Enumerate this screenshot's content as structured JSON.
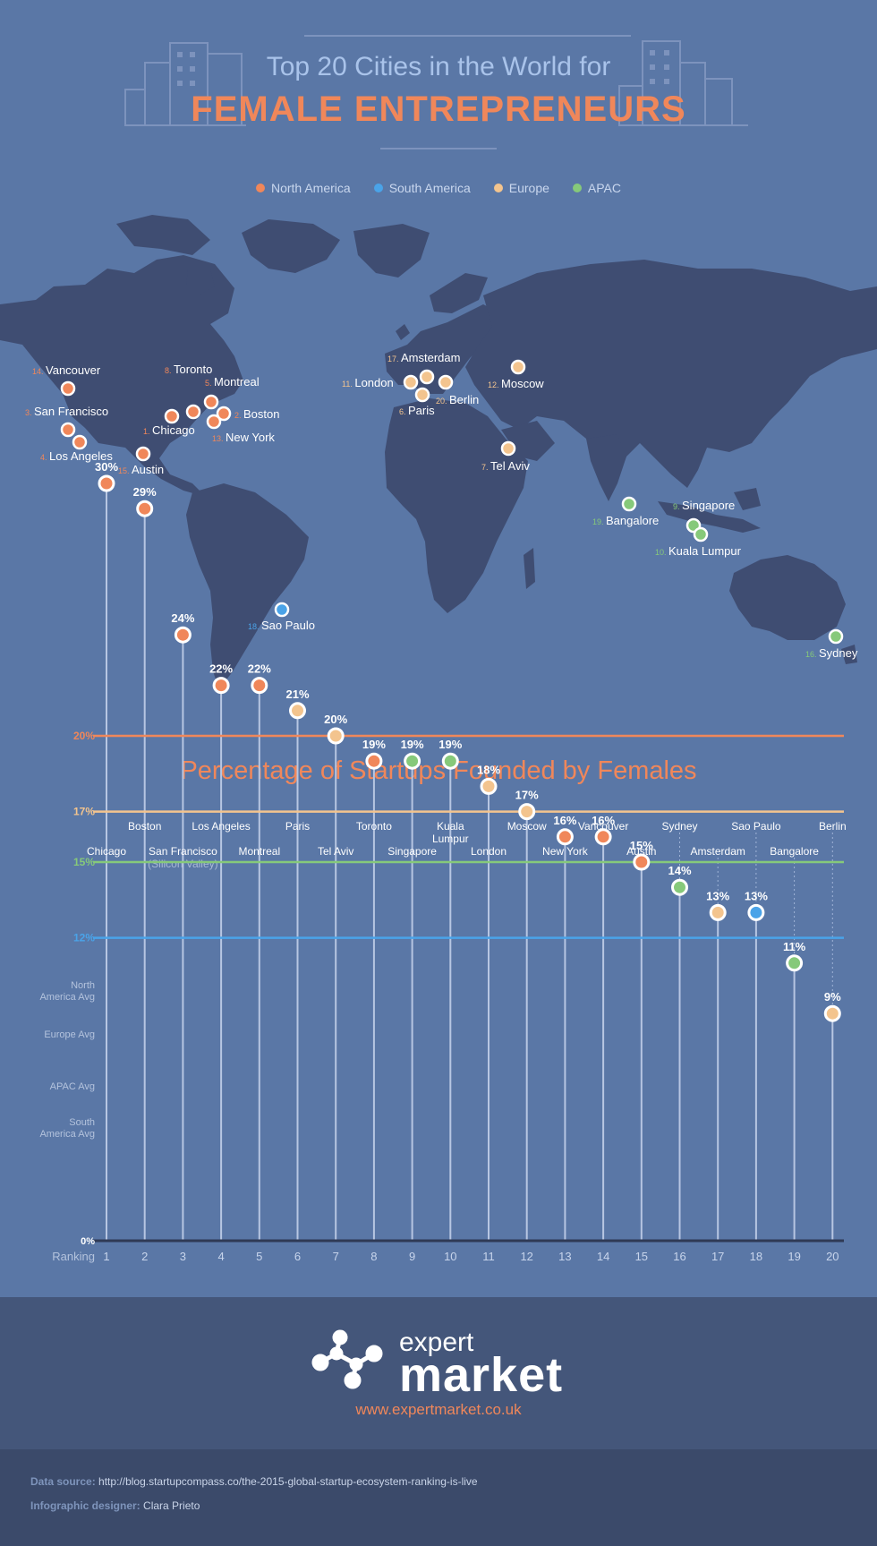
{
  "header": {
    "title_line1": "Top 20 Cities in the World for",
    "title_line2": "FEMALE ENTREPRENEURS"
  },
  "colors": {
    "north_america": "#f0875a",
    "south_america": "#4aa3e8",
    "europe": "#f3c48e",
    "apac": "#86c97a",
    "land": "#3f4d72",
    "background": "#5a77a6"
  },
  "legend": [
    {
      "label": "North America",
      "color": "#f0875a"
    },
    {
      "label": "South America",
      "color": "#4aa3e8"
    },
    {
      "label": "Europe",
      "color": "#f3c48e"
    },
    {
      "label": "APAC",
      "color": "#86c97a"
    }
  ],
  "map": {
    "cities": [
      {
        "rank": "14.",
        "name": "Vancouver",
        "region": "north_america"
      },
      {
        "rank": "3.",
        "name": "San Francisco",
        "region": "north_america"
      },
      {
        "rank": "4.",
        "name": "Los Angeles",
        "region": "north_america"
      },
      {
        "rank": "15.",
        "name": "Austin",
        "region": "north_america"
      },
      {
        "rank": "1.",
        "name": "Chicago",
        "region": "north_america"
      },
      {
        "rank": "8.",
        "name": "Toronto",
        "region": "north_america"
      },
      {
        "rank": "5.",
        "name": "Montreal",
        "region": "north_america"
      },
      {
        "rank": "2.",
        "name": "Boston",
        "region": "north_america"
      },
      {
        "rank": "13.",
        "name": "New York",
        "region": "north_america"
      },
      {
        "rank": "18.",
        "name": "Sao Paulo",
        "region": "south_america"
      },
      {
        "rank": "17.",
        "name": "Amsterdam",
        "region": "europe"
      },
      {
        "rank": "11.",
        "name": "London",
        "region": "europe"
      },
      {
        "rank": "6.",
        "name": "Paris",
        "region": "europe"
      },
      {
        "rank": "20.",
        "name": "Berlin",
        "region": "europe"
      },
      {
        "rank": "12.",
        "name": "Moscow",
        "region": "europe"
      },
      {
        "rank": "7.",
        "name": "Tel Aviv",
        "region": "europe"
      },
      {
        "rank": "19.",
        "name": "Bangalore",
        "region": "apac"
      },
      {
        "rank": "9.",
        "name": "Singapore",
        "region": "apac"
      },
      {
        "rank": "10.",
        "name": "Kuala Lumpur",
        "region": "apac"
      },
      {
        "rank": "16.",
        "name": "Sydney",
        "region": "apac"
      }
    ]
  },
  "chart_data": {
    "type": "scatter",
    "title": "Percentage of Startups Founded by Females",
    "xlabel": "Ranking",
    "ylabel": "",
    "ylim": [
      0,
      30
    ],
    "zero_label": "0%",
    "x": [
      1,
      2,
      3,
      4,
      5,
      6,
      7,
      8,
      9,
      10,
      11,
      12,
      13,
      14,
      15,
      16,
      17,
      18,
      19,
      20
    ],
    "categories": [
      "Chicago",
      "Boston",
      "San Francisco",
      "Los Angeles",
      "Montreal",
      "Paris",
      "Tel Aviv",
      "Toronto",
      "Singapore",
      "Kuala Lumpur",
      "London",
      "Moscow",
      "New York",
      "Vancouver",
      "Austin",
      "Sydney",
      "Amsterdam",
      "Sao Paulo",
      "Bangalore",
      "Berlin"
    ],
    "category_notes": [
      "",
      "",
      "(Silicon Valley)",
      "",
      "",
      "",
      "",
      "",
      "",
      "",
      "",
      "",
      "",
      "",
      "",
      "",
      "",
      "",
      "",
      ""
    ],
    "values": [
      30,
      29,
      24,
      22,
      22,
      21,
      20,
      19,
      19,
      19,
      18,
      17,
      16,
      16,
      15,
      14,
      13,
      13,
      11,
      9
    ],
    "value_labels": [
      "30%",
      "29%",
      "24%",
      "22%",
      "22%",
      "21%",
      "20%",
      "19%",
      "19%",
      "19%",
      "18%",
      "17%",
      "16%",
      "16%",
      "15%",
      "14%",
      "13%",
      "13%",
      "11%",
      "9%"
    ],
    "regions": [
      "north_america",
      "north_america",
      "north_america",
      "north_america",
      "north_america",
      "europe",
      "europe",
      "north_america",
      "apac",
      "apac",
      "europe",
      "europe",
      "north_america",
      "north_america",
      "north_america",
      "apac",
      "europe",
      "south_america",
      "apac",
      "europe"
    ],
    "averages": [
      {
        "name": "North America Avg",
        "value": 20,
        "label": "20%",
        "color": "#f0875a"
      },
      {
        "name": "Europe Avg",
        "value": 17,
        "label": "17%",
        "color": "#f3c48e"
      },
      {
        "name": "APAC Avg",
        "value": 15,
        "label": "15%",
        "color": "#86c97a"
      },
      {
        "name": "South America Avg",
        "value": 12,
        "label": "12%",
        "color": "#4aa3e8"
      }
    ],
    "average_side_labels": [
      "North America Avg",
      "Europe Avg",
      "APAC Avg",
      "South America Avg"
    ]
  },
  "footer": {
    "brand_line1": "expert",
    "brand_line2": "market",
    "website": "www.expertmarket.co.uk",
    "source_label": "Data source:",
    "source_value": "http://blog.startupcompass.co/the-2015-global-startup-ecosystem-ranking-is-live",
    "designer_label": "Infographic designer:",
    "designer_value": "Clara Prieto"
  }
}
